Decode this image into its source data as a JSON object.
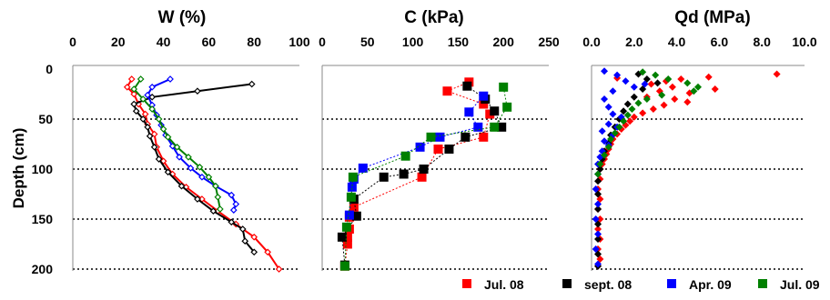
{
  "chart_data": [
    {
      "type": "line",
      "title": "W (%)",
      "ylabel": "Depth (cm)",
      "xlim": [
        0,
        100
      ],
      "xticks": [
        "0",
        "20",
        "40",
        "60",
        "80",
        "100"
      ],
      "ylim": [
        0,
        200
      ],
      "yticks": [
        "0",
        "50",
        "100",
        "150",
        "200"
      ],
      "y_inverted": true,
      "gridlines_y": [
        50,
        100,
        150,
        200
      ],
      "series": [
        {
          "name": "Jul. 08",
          "color": "#ff0000",
          "marker": "open-diamond",
          "points": [
            [
              26,
              10
            ],
            [
              24,
              18
            ],
            [
              27,
              25
            ],
            [
              29,
              35
            ],
            [
              32,
              45
            ],
            [
              33,
              55
            ],
            [
              36,
              65
            ],
            [
              37,
              78
            ],
            [
              40,
              92
            ],
            [
              44,
              105
            ],
            [
              50,
              118
            ],
            [
              57,
              130
            ],
            [
              64,
              142
            ],
            [
              72,
              155
            ],
            [
              80,
              168
            ],
            [
              86,
              183
            ],
            [
              91,
              200
            ]
          ]
        },
        {
          "name": "sept. 08",
          "color": "#000000",
          "marker": "open-diamond",
          "points": [
            [
              79,
              15
            ],
            [
              55,
              22
            ],
            [
              35,
              28
            ],
            [
              27,
              35
            ],
            [
              28,
              42
            ],
            [
              31,
              50
            ],
            [
              33,
              58
            ],
            [
              34,
              67
            ],
            [
              36,
              78
            ],
            [
              38,
              90
            ],
            [
              42,
              103
            ],
            [
              48,
              117
            ],
            [
              55,
              130
            ],
            [
              62,
              142
            ],
            [
              70,
              153
            ],
            [
              75,
              160
            ],
            [
              76,
              172
            ],
            [
              80,
              183
            ]
          ]
        },
        {
          "name": "Apr. 09",
          "color": "#0000ff",
          "marker": "open-diamond",
          "points": [
            [
              43,
              10
            ],
            [
              35,
              18
            ],
            [
              33,
              26
            ],
            [
              35,
              36
            ],
            [
              37,
              46
            ],
            [
              39,
              56
            ],
            [
              41,
              66
            ],
            [
              44,
              77
            ],
            [
              47,
              88
            ],
            [
              52,
              99
            ],
            [
              57,
              108
            ],
            [
              63,
              117
            ],
            [
              70,
              126
            ],
            [
              72,
              135
            ],
            [
              71,
              141
            ]
          ]
        },
        {
          "name": "Jul. 09",
          "color": "#008000",
          "marker": "open-diamond",
          "points": [
            [
              30,
              10
            ],
            [
              27,
              20
            ],
            [
              31,
              30
            ],
            [
              35,
              40
            ],
            [
              38,
              50
            ],
            [
              40,
              60
            ],
            [
              42,
              68
            ],
            [
              46,
              78
            ],
            [
              51,
              88
            ],
            [
              56,
              98
            ],
            [
              60,
              108
            ],
            [
              63,
              117
            ],
            [
              64,
              128
            ],
            [
              65,
              140
            ]
          ]
        }
      ]
    },
    {
      "type": "scatter",
      "title": "C (kPa)",
      "xlim": [
        0,
        250
      ],
      "xticks": [
        "0",
        "50",
        "100",
        "150",
        "200",
        "250"
      ],
      "ylim": [
        0,
        200
      ],
      "y_inverted": true,
      "gridlines_y": [
        50,
        100,
        150,
        200
      ],
      "series": [
        {
          "name": "Jul. 08",
          "color": "#ff0000",
          "marker": "filled-square",
          "points": [
            [
              162,
              13
            ],
            [
              138,
              22
            ],
            [
              178,
              35
            ],
            [
              185,
              45
            ],
            [
              178,
              68
            ],
            [
              128,
              80
            ],
            [
              110,
              108
            ],
            [
              35,
              138
            ],
            [
              30,
              148
            ],
            [
              30,
              160
            ],
            [
              28,
              168
            ],
            [
              28,
              175
            ],
            [
              25,
              197
            ]
          ]
        },
        {
          "name": "sept. 08",
          "color": "#000000",
          "marker": "filled-square",
          "points": [
            [
              160,
              17
            ],
            [
              180,
              30
            ],
            [
              190,
              42
            ],
            [
              198,
              58
            ],
            [
              158,
              68
            ],
            [
              140,
              80
            ],
            [
              112,
              100
            ],
            [
              90,
              105
            ],
            [
              68,
              108
            ],
            [
              35,
              130
            ],
            [
              38,
              147
            ],
            [
              22,
              168
            ],
            [
              25,
              196
            ]
          ]
        },
        {
          "name": "Apr. 09",
          "color": "#0000ff",
          "marker": "filled-square",
          "points": [
            [
              178,
              27
            ],
            [
              162,
              43
            ],
            [
              172,
              58
            ],
            [
              130,
              68
            ],
            [
              108,
              78
            ],
            [
              45,
              99
            ],
            [
              35,
              110
            ],
            [
              33,
              118
            ],
            [
              30,
              146
            ]
          ]
        },
        {
          "name": "Jul. 09",
          "color": "#008000",
          "marker": "filled-square",
          "points": [
            [
              200,
              18
            ],
            [
              204,
              38
            ],
            [
              190,
              58
            ],
            [
              120,
              68
            ],
            [
              92,
              87
            ],
            [
              34,
              108
            ],
            [
              32,
              128
            ],
            [
              27,
              158
            ],
            [
              25,
              197
            ]
          ]
        }
      ]
    },
    {
      "type": "scatter",
      "title": "Qd (MPa)",
      "xlim": [
        0,
        10
      ],
      "xticks": [
        "0.0",
        "2.0",
        "4.0",
        "6.0",
        "8.0",
        "10.0"
      ],
      "ylim": [
        0,
        200
      ],
      "y_inverted": true,
      "gridlines_y": [
        50,
        100,
        150,
        200
      ],
      "series": [
        {
          "name": "Jul. 08",
          "color": "#ff0000",
          "marker": "filled-diamond",
          "points": [
            [
              8.7,
              5
            ],
            [
              5.5,
              8
            ],
            [
              4.2,
              10
            ],
            [
              3.5,
              12
            ],
            [
              2.8,
              15
            ],
            [
              1.2,
              9
            ],
            [
              5.8,
              20
            ],
            [
              4.6,
              24
            ],
            [
              3.8,
              18
            ],
            [
              3.2,
              22
            ],
            [
              2.6,
              28
            ],
            [
              3.9,
              30
            ],
            [
              4.5,
              33
            ],
            [
              3.4,
              36
            ],
            [
              2.9,
              40
            ],
            [
              2.4,
              44
            ],
            [
              2.0,
              48
            ],
            [
              1.8,
              52
            ],
            [
              1.6,
              56
            ],
            [
              1.4,
              60
            ],
            [
              1.2,
              65
            ],
            [
              1.0,
              70
            ],
            [
              0.9,
              75
            ],
            [
              0.8,
              80
            ],
            [
              0.7,
              85
            ],
            [
              0.6,
              90
            ],
            [
              0.5,
              95
            ],
            [
              0.4,
              100
            ],
            [
              0.4,
              110
            ],
            [
              0.3,
              120
            ],
            [
              0.4,
              130
            ],
            [
              0.3,
              140
            ],
            [
              0.4,
              150
            ],
            [
              0.3,
              160
            ],
            [
              0.4,
              170
            ],
            [
              0.3,
              180
            ],
            [
              0.4,
              190
            ],
            [
              0.3,
              197
            ]
          ]
        },
        {
          "name": "sept. 08",
          "color": "#000000",
          "marker": "filled-diamond",
          "points": [
            [
              2.2,
              5
            ],
            [
              2.6,
              10
            ],
            [
              3.1,
              14
            ],
            [
              2.4,
              20
            ],
            [
              2.0,
              28
            ],
            [
              1.7,
              35
            ],
            [
              1.5,
              42
            ],
            [
              1.3,
              50
            ],
            [
              1.1,
              58
            ],
            [
              0.9,
              66
            ],
            [
              0.8,
              74
            ],
            [
              0.6,
              82
            ],
            [
              0.5,
              90
            ],
            [
              0.4,
              100
            ],
            [
              0.3,
              112
            ],
            [
              0.3,
              125
            ],
            [
              0.3,
              140
            ],
            [
              0.3,
              155
            ],
            [
              0.3,
              170
            ],
            [
              0.3,
              185
            ],
            [
              0.3,
              197
            ]
          ]
        },
        {
          "name": "Apr. 09",
          "color": "#0000ff",
          "marker": "filled-diamond",
          "points": [
            [
              0.6,
              2
            ],
            [
              1.2,
              6
            ],
            [
              1.6,
              12
            ],
            [
              2.0,
              18
            ],
            [
              2.5,
              15
            ],
            [
              1.0,
              22
            ],
            [
              0.6,
              30
            ],
            [
              0.8,
              38
            ],
            [
              1.0,
              45
            ],
            [
              1.4,
              48
            ],
            [
              0.8,
              55
            ],
            [
              1.2,
              58
            ],
            [
              0.5,
              62
            ],
            [
              1.0,
              66
            ],
            [
              0.6,
              72
            ],
            [
              0.8,
              76
            ],
            [
              0.5,
              82
            ],
            [
              0.4,
              88
            ],
            [
              0.3,
              95
            ],
            [
              0.3,
              105
            ],
            [
              0.2,
              120
            ],
            [
              0.3,
              135
            ],
            [
              0.2,
              150
            ],
            [
              0.3,
              165
            ],
            [
              0.2,
              180
            ],
            [
              0.3,
              195
            ]
          ]
        },
        {
          "name": "Jul. 09",
          "color": "#008000",
          "marker": "filled-diamond",
          "points": [
            [
              2.4,
              3
            ],
            [
              3.0,
              6
            ],
            [
              3.6,
              10
            ],
            [
              4.5,
              14
            ],
            [
              5.0,
              18
            ],
            [
              4.8,
              22
            ],
            [
              3.3,
              26
            ],
            [
              2.6,
              30
            ],
            [
              2.2,
              34
            ],
            [
              1.9,
              40
            ],
            [
              1.7,
              46
            ],
            [
              1.5,
              52
            ],
            [
              1.3,
              58
            ],
            [
              1.1,
              64
            ],
            [
              0.9,
              70
            ],
            [
              0.8,
              78
            ],
            [
              0.6,
              86
            ],
            [
              0.4,
              95
            ],
            [
              0.3,
              105
            ]
          ]
        }
      ]
    }
  ],
  "legend": {
    "placement": "bottom-right",
    "items": [
      {
        "label": "Jul. 08",
        "color": "#ff0000"
      },
      {
        "label": "sept. 08",
        "color": "#000000"
      },
      {
        "label": "Apr. 09",
        "color": "#0000ff"
      },
      {
        "label": "Jul. 09",
        "color": "#008000"
      }
    ]
  }
}
